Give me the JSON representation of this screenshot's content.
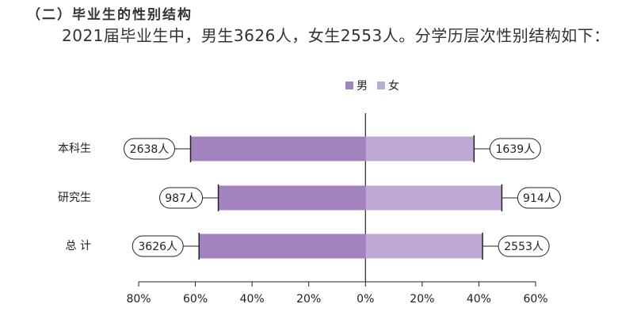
{
  "header": {
    "title": "（二）毕业生的性别结构"
  },
  "paragraph": "2021届毕业生中，男生3626人，女生2553人。分学历层次性别结构如下：",
  "chart_data": {
    "type": "butterfly-bar",
    "categories": [
      "本科生",
      "研究生",
      "总 计"
    ],
    "series": [
      {
        "name": "男",
        "color": "#a383be",
        "values": [
          61.7,
          51.9,
          58.7
        ],
        "value_labels": [
          "2638人",
          "987人",
          "3626人"
        ]
      },
      {
        "name": "女",
        "color": "#bea9d5",
        "values": [
          38.3,
          48.1,
          41.3
        ],
        "value_labels": [
          "1639人",
          "914人",
          "2553人"
        ]
      }
    ],
    "xlim": [
      -80,
      60
    ],
    "xticks": [
      {
        "value": -80,
        "label": "80%"
      },
      {
        "value": -60,
        "label": "60%"
      },
      {
        "value": -40,
        "label": "40%"
      },
      {
        "value": -20,
        "label": "20%"
      },
      {
        "value": 0,
        "label": "0%"
      },
      {
        "value": 20,
        "label": "20%"
      },
      {
        "value": 40,
        "label": "40%"
      },
      {
        "value": 60,
        "label": "60%"
      }
    ]
  }
}
